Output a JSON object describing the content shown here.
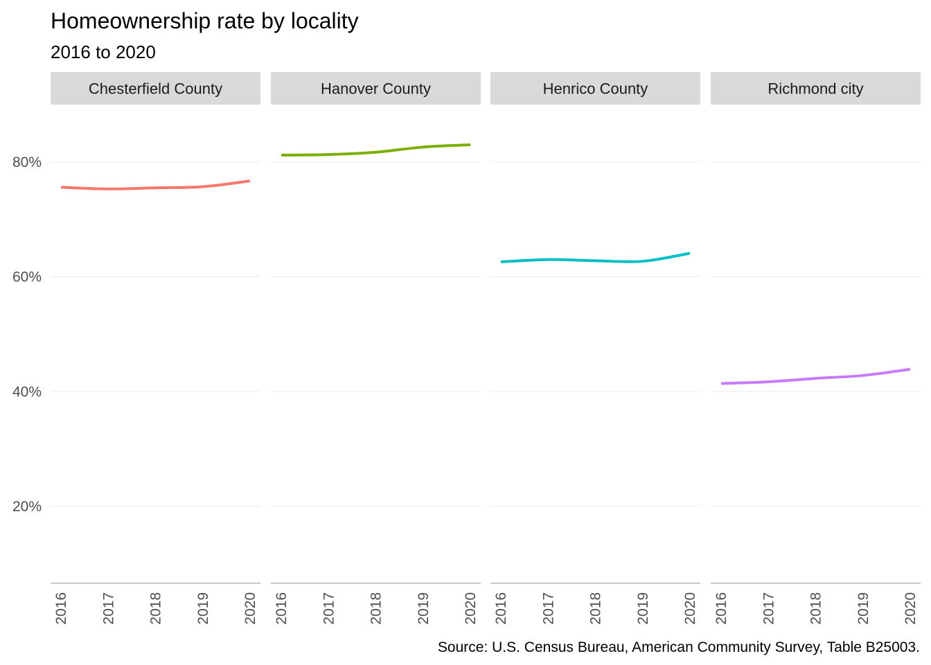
{
  "chart_data": {
    "type": "line",
    "title": "Homeownership rate by locality",
    "subtitle": "2016 to 2020",
    "caption": "Source: U.S. Census Bureau, American Community Survey, Table B25003.",
    "x": [
      "2016",
      "2017",
      "2018",
      "2019",
      "2020"
    ],
    "y_ticks": [
      "20%",
      "40%",
      "60%",
      "80%"
    ],
    "y_tick_values": [
      0.2,
      0.4,
      0.6,
      0.8
    ],
    "ylim": [
      0.066,
      0.9
    ],
    "grid": true,
    "legend": "none",
    "panels": [
      {
        "name": "Chesterfield County",
        "color": "#F8766D",
        "values": [
          0.756,
          0.753,
          0.755,
          0.757,
          0.767
        ]
      },
      {
        "name": "Hanover County",
        "color": "#7CAE00",
        "values": [
          0.812,
          0.813,
          0.817,
          0.826,
          0.83
        ]
      },
      {
        "name": "Henrico County",
        "color": "#00BFC4",
        "values": [
          0.626,
          0.63,
          0.628,
          0.627,
          0.641
        ]
      },
      {
        "name": "Richmond city",
        "color": "#C77CFF",
        "values": [
          0.414,
          0.417,
          0.423,
          0.428,
          0.439
        ]
      }
    ]
  }
}
